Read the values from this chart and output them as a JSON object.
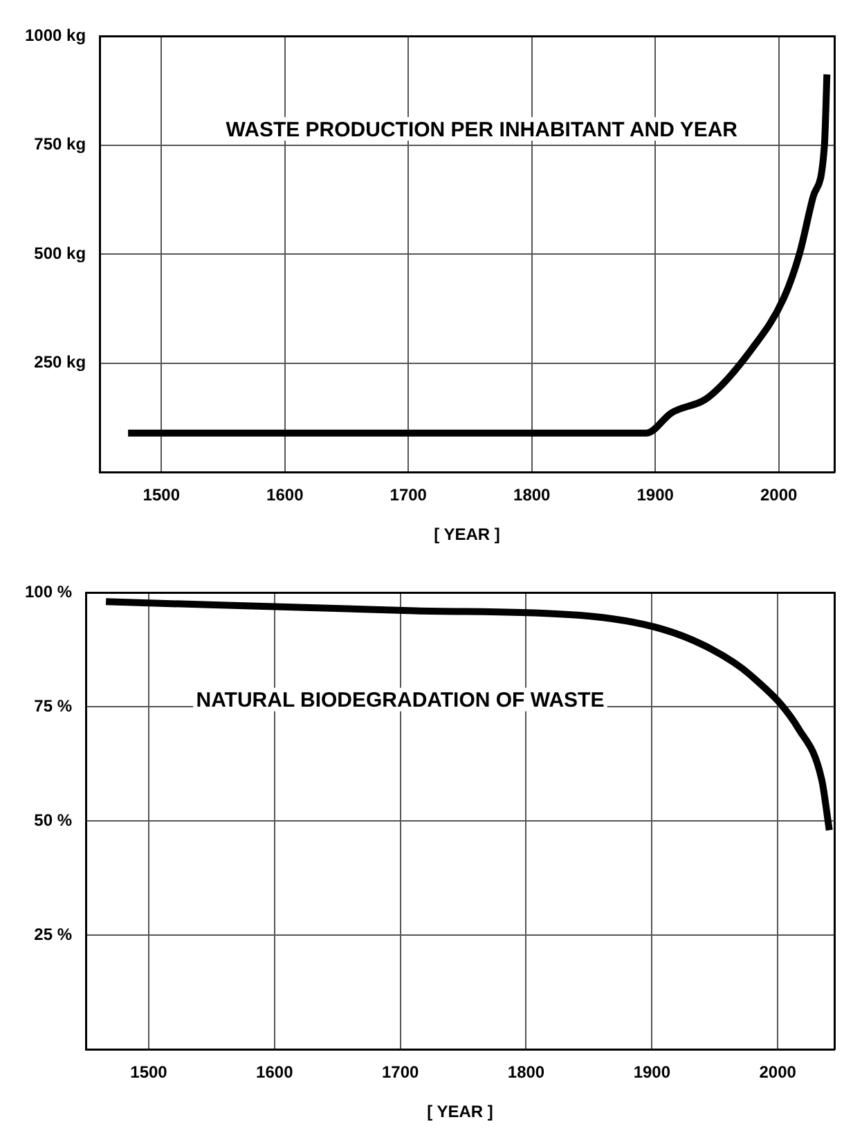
{
  "chart_data": [
    {
      "type": "line",
      "title": "WASTE PRODUCTION PER INHABITANT AND YEAR",
      "xlabel": "[ YEAR ]",
      "series": [
        {
          "color": "#000000",
          "x": [
            1473,
            1893,
            1913,
            1943,
            1978,
            2004,
            2017,
            2028,
            2037,
            2039
          ],
          "values": [
            90,
            90,
            136,
            172,
            282,
            399,
            503,
            633,
            750,
            912
          ]
        }
      ],
      "xlim": [
        1450,
        2045
      ],
      "xticks": [
        1500,
        1600,
        1700,
        1800,
        1900,
        2000
      ],
      "ylim": [
        0,
        1000
      ],
      "yticks": [
        {
          "value": 250,
          "label": "250 kg"
        },
        {
          "value": 500,
          "label": "500 kg"
        },
        {
          "value": 750,
          "label": "750 kg"
        },
        {
          "value": 1000,
          "label": "1000 kg"
        }
      ],
      "grid": true,
      "legend": false,
      "marker": "none",
      "line_style": "solid"
    },
    {
      "type": "line",
      "title": "NATURAL BIODEGRADATION OF WASTE",
      "xlabel": "[ YEAR ]",
      "series": [
        {
          "color": "#000000",
          "x": [
            1466,
            1712,
            1843,
            1908,
            1948,
            1978,
            2017,
            2035,
            2041
          ],
          "values": [
            98,
            96,
            95,
            92,
            87.5,
            82,
            70,
            59,
            48
          ]
        }
      ],
      "xlim": [
        1450,
        2045
      ],
      "xticks": [
        1500,
        1600,
        1700,
        1800,
        1900,
        2000
      ],
      "ylim": [
        0,
        100
      ],
      "yticks": [
        {
          "value": 25,
          "label": "25 %"
        },
        {
          "value": 50,
          "label": "50 %"
        },
        {
          "value": 75,
          "label": "75 %"
        },
        {
          "value": 100,
          "label": "100 %"
        }
      ],
      "grid": true,
      "legend": false,
      "marker": "none",
      "line_style": "solid"
    }
  ]
}
